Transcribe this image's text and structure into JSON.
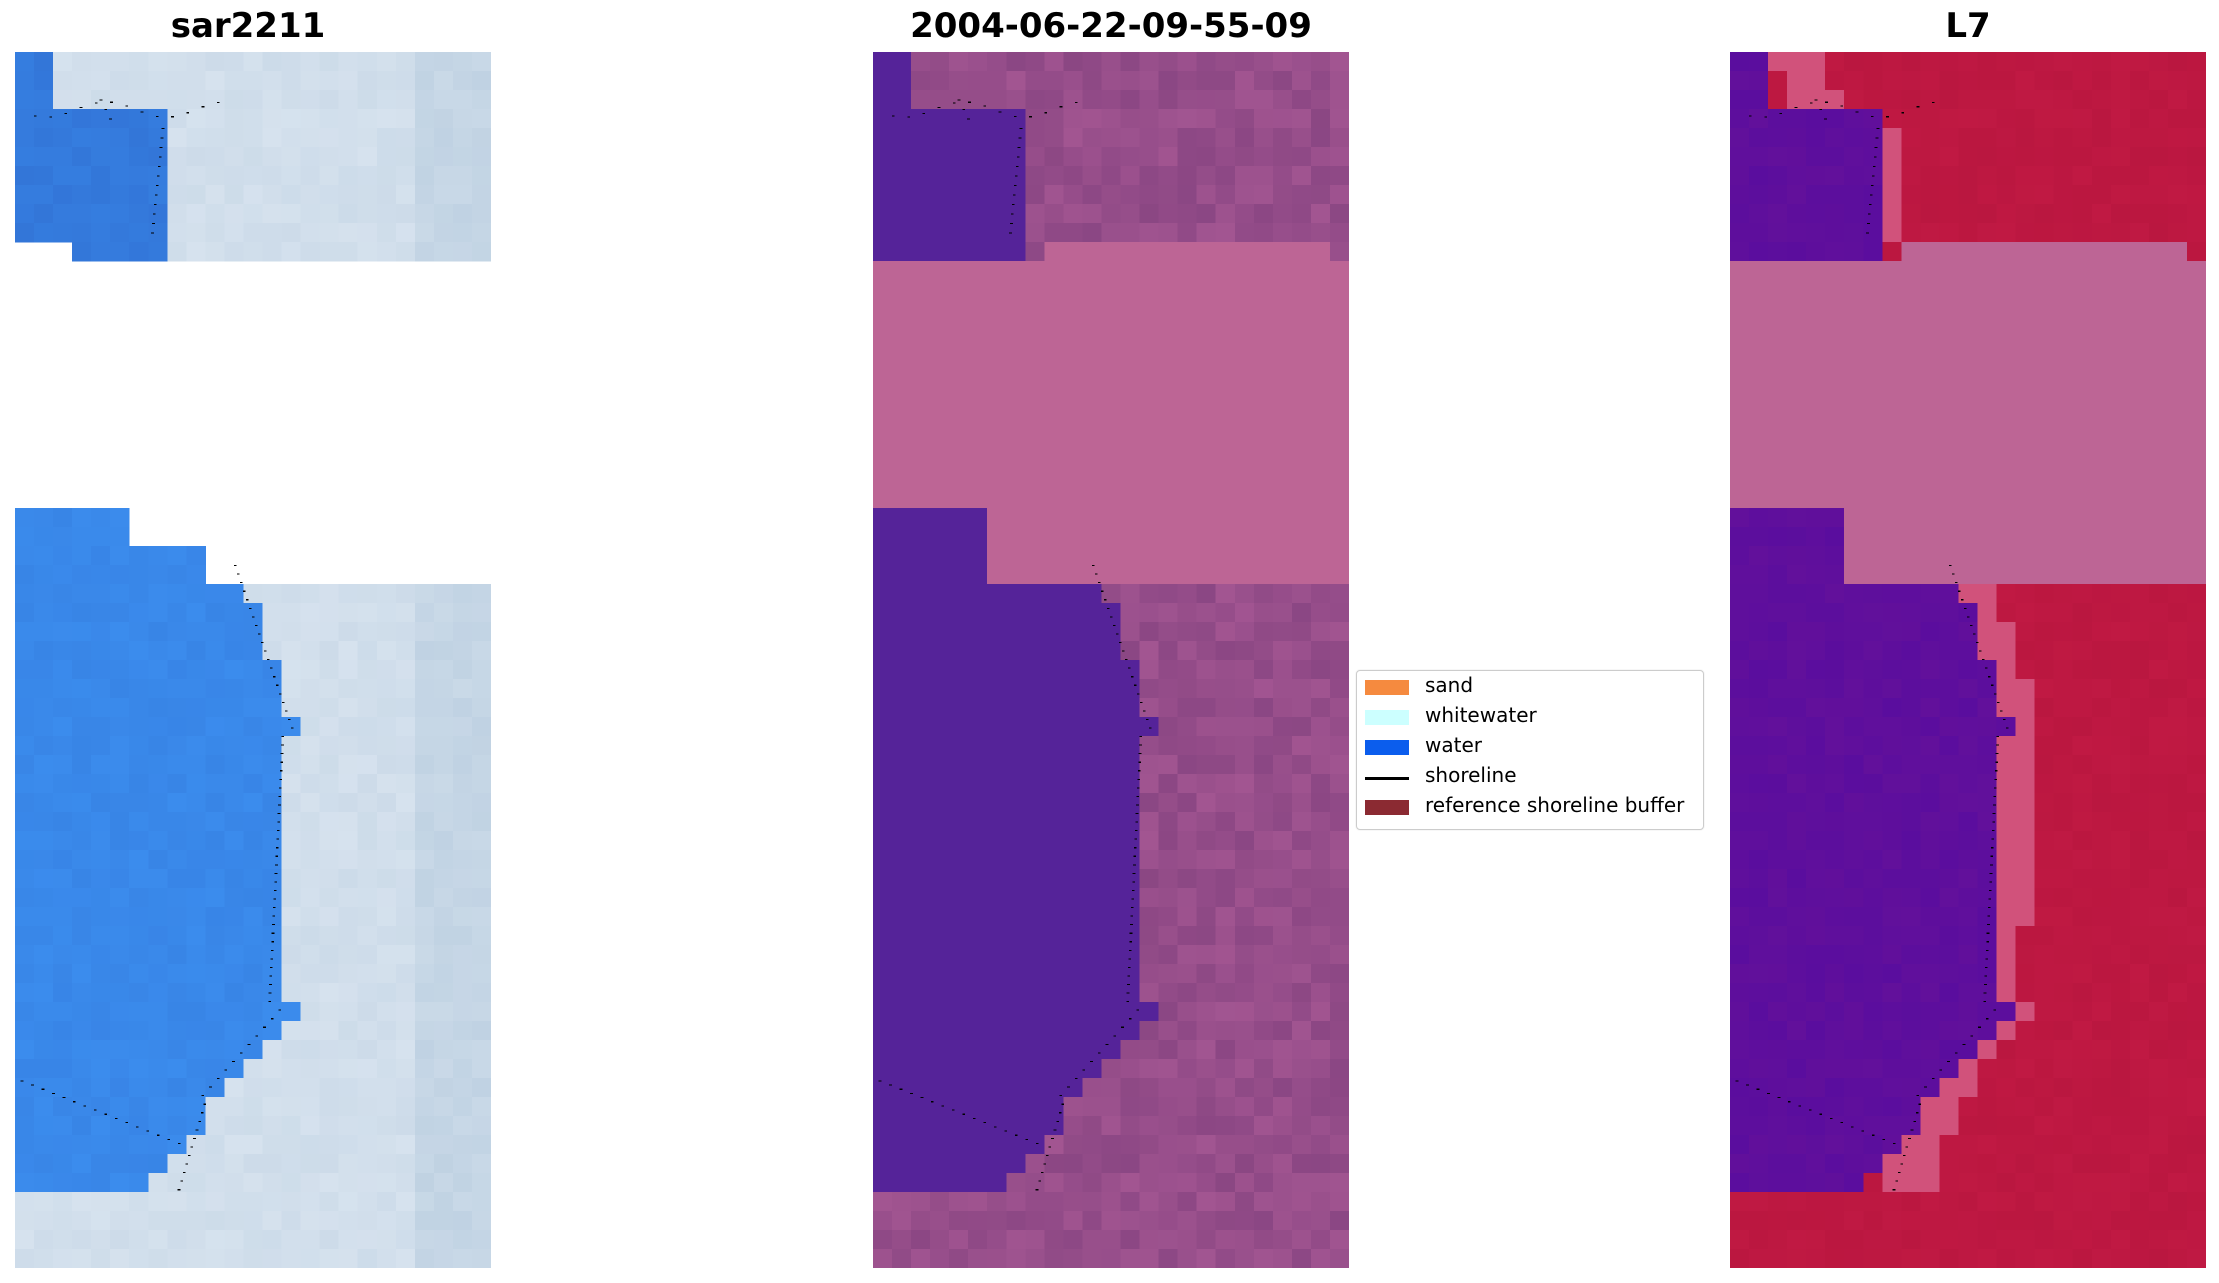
{
  "panels": [
    {
      "title": "sar2211",
      "style": "rgb"
    },
    {
      "title": "2004-06-22-09-55-09",
      "style": "classified"
    },
    {
      "title": "L7",
      "style": "index"
    }
  ],
  "legend": [
    {
      "label": "sand",
      "color": "#f58a3f",
      "kind": "patch"
    },
    {
      "label": "whitewater",
      "color": "#ccffff",
      "kind": "patch"
    },
    {
      "label": "water",
      "color": "#0b5ded",
      "kind": "patch"
    },
    {
      "label": "shoreline",
      "color": "#000000",
      "kind": "line"
    },
    {
      "label": "reference shoreline buffer",
      "color": "#8b2a32",
      "kind": "patch"
    }
  ],
  "colors": {
    "nodata_band": "#bd6595",
    "water_class": "#552399",
    "land_class_light": "#a25591",
    "land_class_dark": "#854380",
    "index_land": "#c01943",
    "index_water": "#5a0d9e",
    "rgb_water": "#3b8ced",
    "rgb_land": "#d6e2ee"
  }
}
